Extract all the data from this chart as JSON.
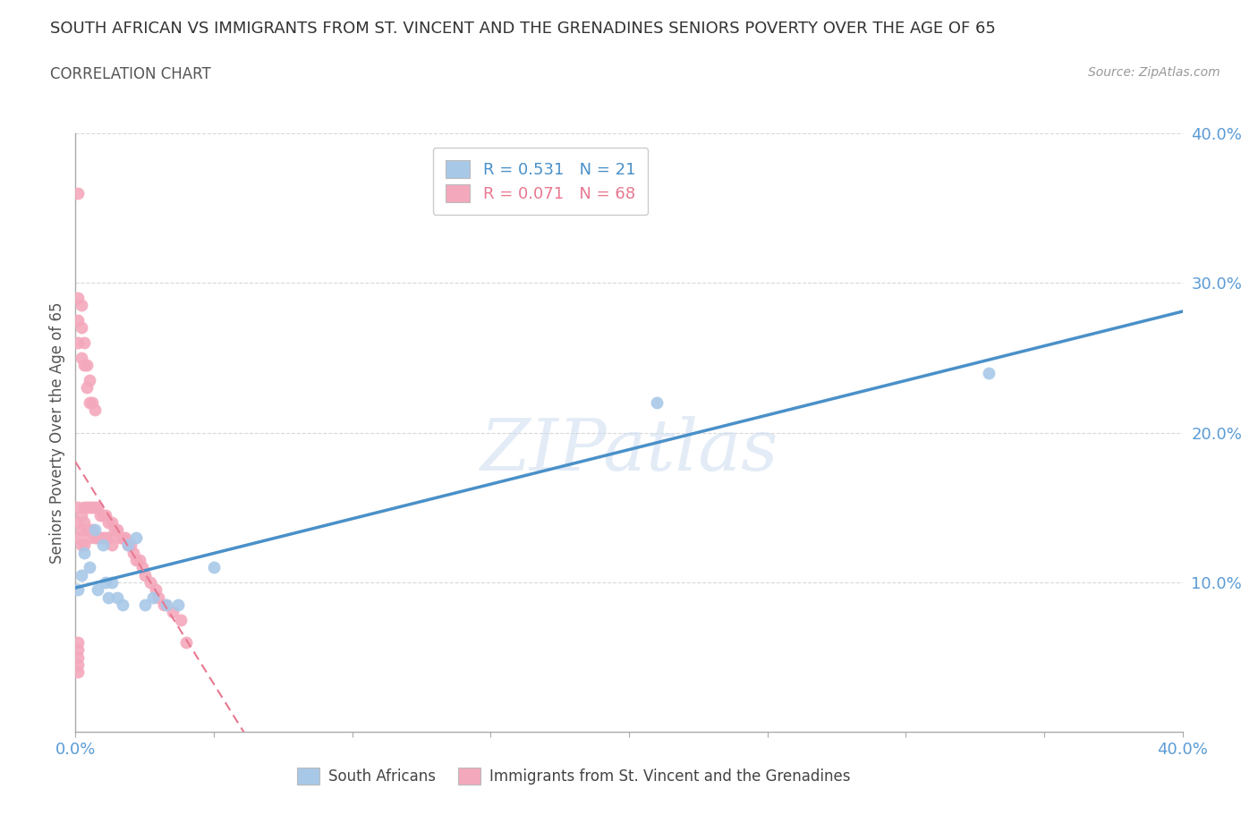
{
  "title": "SOUTH AFRICAN VS IMMIGRANTS FROM ST. VINCENT AND THE GRENADINES SENIORS POVERTY OVER THE AGE OF 65",
  "subtitle": "CORRELATION CHART",
  "source": "Source: ZipAtlas.com",
  "ylabel": "Seniors Poverty Over the Age of 65",
  "xlim": [
    0.0,
    0.4
  ],
  "ylim": [
    0.0,
    0.4
  ],
  "blue_R": 0.531,
  "blue_N": 21,
  "pink_R": 0.071,
  "pink_N": 68,
  "blue_color": "#a8c8e8",
  "pink_color": "#f4a8bc",
  "blue_line_color": "#4a90c8",
  "pink_line_color": "#e87890",
  "tick_color": "#5b9bd5",
  "grid_color": "#d8d8d8",
  "blue_x": [
    0.001,
    0.002,
    0.003,
    0.005,
    0.007,
    0.008,
    0.01,
    0.011,
    0.012,
    0.013,
    0.015,
    0.017,
    0.019,
    0.022,
    0.025,
    0.028,
    0.033,
    0.037,
    0.05,
    0.21,
    0.33
  ],
  "blue_y": [
    0.095,
    0.105,
    0.12,
    0.11,
    0.135,
    0.095,
    0.125,
    0.1,
    0.09,
    0.1,
    0.09,
    0.085,
    0.125,
    0.13,
    0.085,
    0.09,
    0.085,
    0.085,
    0.11,
    0.22,
    0.24
  ],
  "pink_x": [
    0.001,
    0.001,
    0.001,
    0.001,
    0.001,
    0.001,
    0.001,
    0.002,
    0.002,
    0.002,
    0.002,
    0.002,
    0.002,
    0.003,
    0.003,
    0.003,
    0.003,
    0.003,
    0.004,
    0.004,
    0.004,
    0.004,
    0.005,
    0.005,
    0.005,
    0.005,
    0.006,
    0.006,
    0.006,
    0.007,
    0.007,
    0.007,
    0.008,
    0.008,
    0.009,
    0.009,
    0.01,
    0.01,
    0.011,
    0.011,
    0.012,
    0.012,
    0.013,
    0.013,
    0.014,
    0.015,
    0.016,
    0.017,
    0.018,
    0.019,
    0.02,
    0.021,
    0.022,
    0.023,
    0.024,
    0.025,
    0.027,
    0.029,
    0.03,
    0.032,
    0.035,
    0.038,
    0.04,
    0.001,
    0.001,
    0.001,
    0.001,
    0.001
  ],
  "pink_y": [
    0.36,
    0.29,
    0.275,
    0.26,
    0.15,
    0.14,
    0.13,
    0.285,
    0.27,
    0.25,
    0.145,
    0.135,
    0.125,
    0.26,
    0.245,
    0.15,
    0.14,
    0.125,
    0.245,
    0.23,
    0.15,
    0.135,
    0.235,
    0.22,
    0.15,
    0.13,
    0.22,
    0.15,
    0.135,
    0.215,
    0.15,
    0.13,
    0.15,
    0.13,
    0.145,
    0.13,
    0.145,
    0.13,
    0.145,
    0.13,
    0.14,
    0.13,
    0.14,
    0.125,
    0.135,
    0.135,
    0.13,
    0.13,
    0.13,
    0.125,
    0.125,
    0.12,
    0.115,
    0.115,
    0.11,
    0.105,
    0.1,
    0.095,
    0.09,
    0.085,
    0.08,
    0.075,
    0.06,
    0.06,
    0.055,
    0.05,
    0.045,
    0.04
  ]
}
